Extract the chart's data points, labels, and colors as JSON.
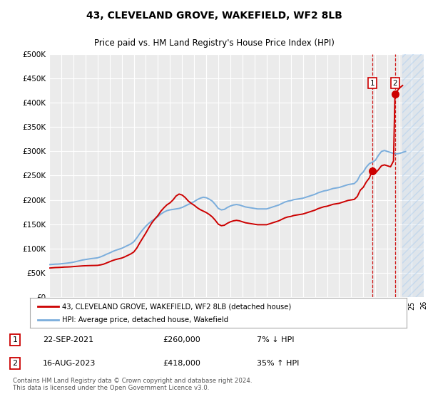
{
  "title": "43, CLEVELAND GROVE, WAKEFIELD, WF2 8LB",
  "subtitle": "Price paid vs. HM Land Registry's House Price Index (HPI)",
  "ylim": [
    0,
    500000
  ],
  "yticks": [
    0,
    50000,
    100000,
    150000,
    200000,
    250000,
    300000,
    350000,
    400000,
    450000,
    500000
  ],
  "ytick_labels": [
    "£0",
    "£50K",
    "£100K",
    "£150K",
    "£200K",
    "£250K",
    "£300K",
    "£350K",
    "£400K",
    "£450K",
    "£500K"
  ],
  "background_color": "#ffffff",
  "plot_bg_color": "#ebebeb",
  "grid_color": "#ffffff",
  "hpi_color": "#7aaddc",
  "price_color": "#cc0000",
  "transaction1_date": "22-SEP-2021",
  "transaction1_price": 260000,
  "transaction1_pct": "7%",
  "transaction1_dir": "↓",
  "transaction2_date": "16-AUG-2023",
  "transaction2_price": 418000,
  "transaction2_pct": "35%",
  "transaction2_dir": "↑",
  "legend_label1": "43, CLEVELAND GROVE, WAKEFIELD, WF2 8LB (detached house)",
  "legend_label2": "HPI: Average price, detached house, Wakefield",
  "footer": "Contains HM Land Registry data © Crown copyright and database right 2024.\nThis data is licensed under the Open Government Licence v3.0.",
  "hpi_data": [
    [
      1995.0,
      67000
    ],
    [
      1995.25,
      67500
    ],
    [
      1995.5,
      68000
    ],
    [
      1995.75,
      68200
    ],
    [
      1996.0,
      68800
    ],
    [
      1996.25,
      69500
    ],
    [
      1996.5,
      70200
    ],
    [
      1996.75,
      71000
    ],
    [
      1997.0,
      72000
    ],
    [
      1997.25,
      73500
    ],
    [
      1997.5,
      75000
    ],
    [
      1997.75,
      76500
    ],
    [
      1998.0,
      77500
    ],
    [
      1998.25,
      78500
    ],
    [
      1998.5,
      79500
    ],
    [
      1998.75,
      80200
    ],
    [
      1999.0,
      81000
    ],
    [
      1999.25,
      83000
    ],
    [
      1999.5,
      85500
    ],
    [
      1999.75,
      88500
    ],
    [
      2000.0,
      91000
    ],
    [
      2000.25,
      94000
    ],
    [
      2000.5,
      96500
    ],
    [
      2000.75,
      98500
    ],
    [
      2001.0,
      100500
    ],
    [
      2001.25,
      103500
    ],
    [
      2001.5,
      106500
    ],
    [
      2001.75,
      109500
    ],
    [
      2002.0,
      114000
    ],
    [
      2002.25,
      122000
    ],
    [
      2002.5,
      131000
    ],
    [
      2002.75,
      139000
    ],
    [
      2003.0,
      146000
    ],
    [
      2003.25,
      152000
    ],
    [
      2003.5,
      157000
    ],
    [
      2003.75,
      161000
    ],
    [
      2004.0,
      166000
    ],
    [
      2004.25,
      171000
    ],
    [
      2004.5,
      175000
    ],
    [
      2004.75,
      178000
    ],
    [
      2005.0,
      179500
    ],
    [
      2005.25,
      180500
    ],
    [
      2005.5,
      181500
    ],
    [
      2005.75,
      182500
    ],
    [
      2006.0,
      184500
    ],
    [
      2006.25,
      187500
    ],
    [
      2006.5,
      190500
    ],
    [
      2006.75,
      193500
    ],
    [
      2007.0,
      196500
    ],
    [
      2007.25,
      200500
    ],
    [
      2007.5,
      203500
    ],
    [
      2007.75,
      205500
    ],
    [
      2008.0,
      204500
    ],
    [
      2008.25,
      201500
    ],
    [
      2008.5,
      197500
    ],
    [
      2008.75,
      190500
    ],
    [
      2009.0,
      182500
    ],
    [
      2009.25,
      179500
    ],
    [
      2009.5,
      180500
    ],
    [
      2009.75,
      184500
    ],
    [
      2010.0,
      187500
    ],
    [
      2010.25,
      189500
    ],
    [
      2010.5,
      190500
    ],
    [
      2010.75,
      189500
    ],
    [
      2011.0,
      187500
    ],
    [
      2011.25,
      185500
    ],
    [
      2011.5,
      184500
    ],
    [
      2011.75,
      183500
    ],
    [
      2012.0,
      182500
    ],
    [
      2012.25,
      181500
    ],
    [
      2012.5,
      181500
    ],
    [
      2012.75,
      181500
    ],
    [
      2013.0,
      181500
    ],
    [
      2013.25,
      183500
    ],
    [
      2013.5,
      185500
    ],
    [
      2013.75,
      187500
    ],
    [
      2014.0,
      189500
    ],
    [
      2014.25,
      192500
    ],
    [
      2014.5,
      195500
    ],
    [
      2014.75,
      197500
    ],
    [
      2015.0,
      198500
    ],
    [
      2015.25,
      200500
    ],
    [
      2015.5,
      201500
    ],
    [
      2015.75,
      202500
    ],
    [
      2016.0,
      203500
    ],
    [
      2016.25,
      205500
    ],
    [
      2016.5,
      207500
    ],
    [
      2016.75,
      209500
    ],
    [
      2017.0,
      211500
    ],
    [
      2017.25,
      214500
    ],
    [
      2017.5,
      216500
    ],
    [
      2017.75,
      218500
    ],
    [
      2018.0,
      219500
    ],
    [
      2018.25,
      221500
    ],
    [
      2018.5,
      223500
    ],
    [
      2018.75,
      224500
    ],
    [
      2019.0,
      225500
    ],
    [
      2019.25,
      227500
    ],
    [
      2019.5,
      229500
    ],
    [
      2019.75,
      231500
    ],
    [
      2020.0,
      232500
    ],
    [
      2020.25,
      233500
    ],
    [
      2020.5,
      239500
    ],
    [
      2020.75,
      251500
    ],
    [
      2021.0,
      257500
    ],
    [
      2021.25,
      267500
    ],
    [
      2021.5,
      274500
    ],
    [
      2021.75,
      277500
    ],
    [
      2022.0,
      281500
    ],
    [
      2022.25,
      291500
    ],
    [
      2022.5,
      299500
    ],
    [
      2022.75,
      301500
    ],
    [
      2023.0,
      299500
    ],
    [
      2023.25,
      297500
    ],
    [
      2023.5,
      295500
    ],
    [
      2023.75,
      294500
    ],
    [
      2024.0,
      295500
    ],
    [
      2024.25,
      297500
    ],
    [
      2024.5,
      299500
    ]
  ],
  "price_data": [
    [
      1995.0,
      60000
    ],
    [
      1995.25,
      60500
    ],
    [
      1995.5,
      61000
    ],
    [
      1995.75,
      61200
    ],
    [
      1996.0,
      61500
    ],
    [
      1996.25,
      62000
    ],
    [
      1996.5,
      62200
    ],
    [
      1996.75,
      62500
    ],
    [
      1997.0,
      63000
    ],
    [
      1997.25,
      63500
    ],
    [
      1997.5,
      64000
    ],
    [
      1997.75,
      64500
    ],
    [
      1998.0,
      64800
    ],
    [
      1998.25,
      65000
    ],
    [
      1998.5,
      65200
    ],
    [
      1998.75,
      65300
    ],
    [
      1999.0,
      65500
    ],
    [
      1999.25,
      66500
    ],
    [
      1999.5,
      68000
    ],
    [
      1999.75,
      70500
    ],
    [
      2000.0,
      73000
    ],
    [
      2000.25,
      75500
    ],
    [
      2000.5,
      77500
    ],
    [
      2000.75,
      79000
    ],
    [
      2001.0,
      80500
    ],
    [
      2001.25,
      83000
    ],
    [
      2001.5,
      86000
    ],
    [
      2001.75,
      89000
    ],
    [
      2002.0,
      93000
    ],
    [
      2002.25,
      101000
    ],
    [
      2002.5,
      112000
    ],
    [
      2002.75,
      122000
    ],
    [
      2003.0,
      132000
    ],
    [
      2003.25,
      143000
    ],
    [
      2003.5,
      153000
    ],
    [
      2003.75,
      161000
    ],
    [
      2004.0,
      168000
    ],
    [
      2004.25,
      177000
    ],
    [
      2004.5,
      184000
    ],
    [
      2004.75,
      190000
    ],
    [
      2005.0,
      194000
    ],
    [
      2005.25,
      200000
    ],
    [
      2005.5,
      208000
    ],
    [
      2005.75,
      212000
    ],
    [
      2006.0,
      210000
    ],
    [
      2006.25,
      205000
    ],
    [
      2006.5,
      198000
    ],
    [
      2006.75,
      193000
    ],
    [
      2007.0,
      189000
    ],
    [
      2007.25,
      184000
    ],
    [
      2007.5,
      180000
    ],
    [
      2007.75,
      177000
    ],
    [
      2008.0,
      174000
    ],
    [
      2008.25,
      170000
    ],
    [
      2008.5,
      165000
    ],
    [
      2008.75,
      158000
    ],
    [
      2009.0,
      150000
    ],
    [
      2009.25,
      147000
    ],
    [
      2009.5,
      148000
    ],
    [
      2009.75,
      152000
    ],
    [
      2010.0,
      155000
    ],
    [
      2010.25,
      157000
    ],
    [
      2010.5,
      158000
    ],
    [
      2010.75,
      157000
    ],
    [
      2011.0,
      155000
    ],
    [
      2011.25,
      153000
    ],
    [
      2011.5,
      152000
    ],
    [
      2011.75,
      151000
    ],
    [
      2012.0,
      150000
    ],
    [
      2012.25,
      149000
    ],
    [
      2012.5,
      149000
    ],
    [
      2012.75,
      149000
    ],
    [
      2013.0,
      149000
    ],
    [
      2013.25,
      151000
    ],
    [
      2013.5,
      153000
    ],
    [
      2013.75,
      155000
    ],
    [
      2014.0,
      157000
    ],
    [
      2014.25,
      160000
    ],
    [
      2014.5,
      163000
    ],
    [
      2014.75,
      165000
    ],
    [
      2015.0,
      166000
    ],
    [
      2015.25,
      168000
    ],
    [
      2015.5,
      169000
    ],
    [
      2015.75,
      170000
    ],
    [
      2016.0,
      171000
    ],
    [
      2016.25,
      173000
    ],
    [
      2016.5,
      175000
    ],
    [
      2016.75,
      177000
    ],
    [
      2017.0,
      179000
    ],
    [
      2017.25,
      182000
    ],
    [
      2017.5,
      184000
    ],
    [
      2017.75,
      186000
    ],
    [
      2018.0,
      187000
    ],
    [
      2018.25,
      189000
    ],
    [
      2018.5,
      191000
    ],
    [
      2018.75,
      192000
    ],
    [
      2019.0,
      193000
    ],
    [
      2019.25,
      195000
    ],
    [
      2019.5,
      197000
    ],
    [
      2019.75,
      199000
    ],
    [
      2020.0,
      200000
    ],
    [
      2020.25,
      201000
    ],
    [
      2020.5,
      207000
    ],
    [
      2020.75,
      220000
    ],
    [
      2021.0,
      226000
    ],
    [
      2021.25,
      237000
    ],
    [
      2021.5,
      245000
    ],
    [
      2021.73,
      260000
    ],
    [
      2022.0,
      255000
    ],
    [
      2022.25,
      262000
    ],
    [
      2022.5,
      270000
    ],
    [
      2022.75,
      272000
    ],
    [
      2023.0,
      270000
    ],
    [
      2023.25,
      268000
    ],
    [
      2023.5,
      280000
    ],
    [
      2023.62,
      418000
    ],
    [
      2024.0,
      430000
    ],
    [
      2024.25,
      435000
    ]
  ],
  "sale1_x": 2021.73,
  "sale1_y": 260000,
  "sale2_x": 2023.62,
  "sale2_y": 418000,
  "xmin": 1995,
  "xmax": 2026,
  "hatched_start": 2024.25
}
